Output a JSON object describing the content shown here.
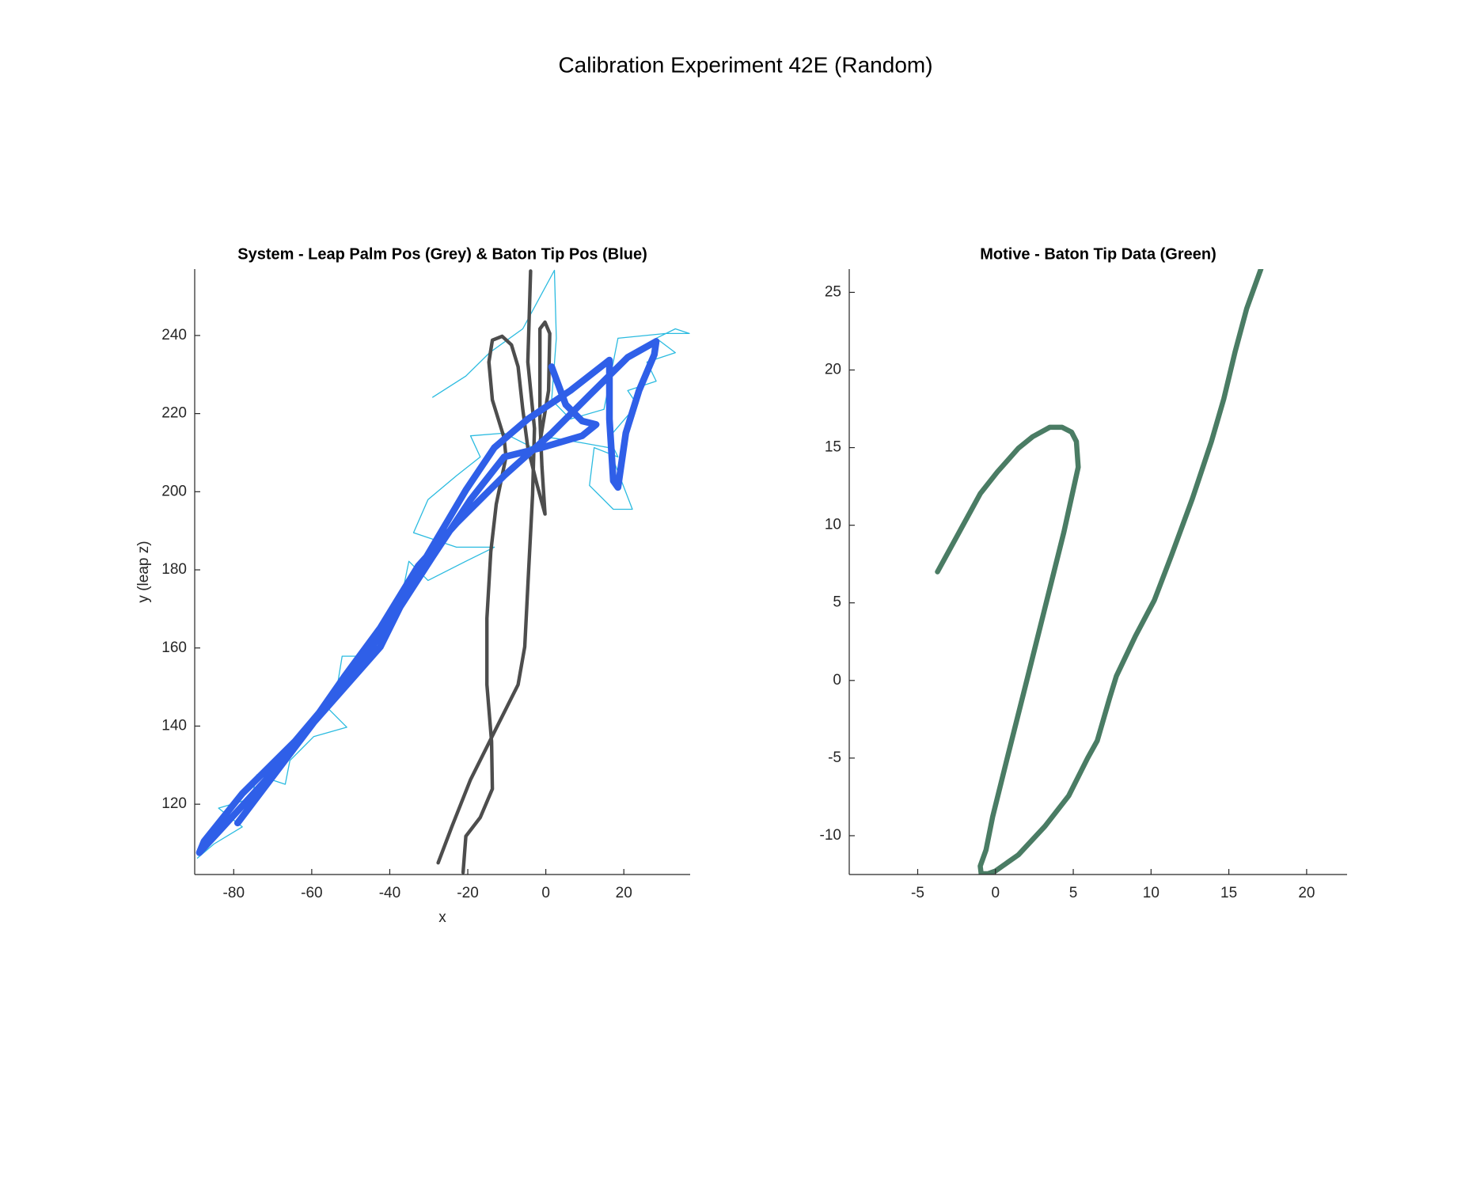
{
  "title": "Calibration Experiment 42E (Random)",
  "chart_data": [
    {
      "type": "line",
      "title": "System - Leap Palm Pos (Grey) & Baton Tip Pos (Blue)",
      "xlabel": "x",
      "ylabel": "y (leap z)",
      "xlim": [
        -90,
        37
      ],
      "ylim": [
        102,
        257
      ],
      "xticks": [
        -80,
        -60,
        -40,
        -20,
        0,
        20
      ],
      "yticks": [
        120,
        140,
        160,
        180,
        200,
        220,
        240
      ],
      "series": [
        {
          "color": "#2bbbe0",
          "x": [
            -29.0,
            -20.5,
            -14.4,
            -5.9,
            2.2,
            2.7,
            1.5,
            6.3,
            14.9,
            18.5,
            30.7,
            36.8,
            33.2,
            28.3,
            33.2,
            25.9,
            28.3,
            21.0,
            23.4,
            16.1,
            18.5,
            12.4,
            11.2,
            17.3,
            22.2,
            16.1,
            8.8,
            1.5,
            -3.4,
            -10.7,
            -19.3,
            -16.8,
            -22.9,
            -30.2,
            -33.9,
            -22.9,
            -13.2,
            -20.5,
            -30.2,
            -35.1,
            -37.6,
            -42.4,
            -44.9,
            -52.2,
            -53.4,
            -57.1,
            -51.0,
            -59.5,
            -65.6,
            -66.8,
            -74.1,
            -75.4,
            -83.9,
            -77.8,
            -85.1,
            -89.3
          ],
          "y": [
            224.2,
            229.6,
            235.6,
            241.7,
            256.7,
            239.3,
            223.5,
            218.6,
            221.1,
            239.3,
            240.5,
            240.5,
            241.7,
            239.3,
            235.6,
            233.2,
            228.3,
            225.9,
            222.3,
            213.8,
            208.9,
            211.3,
            201.6,
            195.5,
            195.5,
            211.3,
            212.6,
            213.8,
            211.3,
            215.0,
            214.3,
            208.9,
            204.1,
            198.0,
            189.5,
            185.8,
            185.8,
            182.2,
            177.3,
            182.2,
            170.0,
            165.2,
            157.9,
            157.9,
            150.6,
            145.8,
            139.7,
            137.3,
            131.2,
            125.1,
            127.5,
            121.5,
            119.0,
            114.2,
            109.8,
            106.2
          ]
        },
        {
          "color": "#4d4d4d",
          "x": [
            -27.6,
            -24.1,
            -19.3,
            -13.2,
            -7.1,
            -5.4,
            -4.4,
            -3.4,
            -2.9,
            -4.6,
            -3.9
          ],
          "y": [
            105.0,
            114.2,
            126.3,
            138.5,
            150.6,
            160.3,
            179.8,
            199.2,
            216.2,
            233.2,
            256.5
          ]
        },
        {
          "color": "#4d4d4d",
          "x": [
            -21.2,
            -20.5,
            -16.8,
            -13.7,
            -13.9,
            -15.1,
            -15.1,
            -14.1,
            -12.7,
            -10.2,
            -10.7,
            -13.7,
            -14.6,
            -13.7,
            -11.2,
            -8.8,
            -7.1,
            -5.9,
            -4.6,
            -2.2,
            -0.2,
            -1.0,
            -1.5,
            -1.5,
            -0.2,
            1.0,
            0.7,
            -1.5,
            -3.4
          ],
          "y": [
            102.5,
            111.8,
            116.6,
            123.9,
            136.0,
            150.6,
            167.6,
            184.6,
            196.8,
            208.9,
            213.8,
            223.5,
            233.2,
            238.8,
            239.8,
            237.6,
            232.0,
            221.1,
            211.3,
            201.6,
            194.3,
            206.5,
            218.6,
            241.7,
            243.4,
            240.5,
            225.9,
            212.6,
            211.3
          ]
        },
        {
          "color": "#2f5fe8",
          "x": [
            1.5,
            5.1,
            9.3,
            12.9,
            9.3,
            -1.0,
            -10.7,
            -19.3,
            -29.0,
            -40.0,
            -51.0,
            -64.4,
            -77.8,
            -87.6,
            -88.8,
            -82.7,
            -71.7,
            -60.7,
            -51.7,
            -42.4,
            -32.7,
            -22.9,
            -10.7,
            1.5,
            11.2,
            21.0,
            28.3,
            27.8,
            23.9,
            20.5,
            18.5,
            17.3,
            16.3,
            16.3,
            6.3,
            -4.6,
            -13.2,
            -20.5,
            -32.7,
            -42.4,
            -59.5,
            -79.0
          ],
          "y": [
            232.0,
            222.3,
            218.1,
            217.2,
            214.3,
            211.3,
            208.9,
            198.0,
            183.4,
            166.4,
            151.8,
            136.0,
            122.7,
            110.5,
            107.6,
            114.2,
            126.3,
            139.7,
            152.6,
            165.2,
            181.0,
            191.9,
            204.1,
            215.0,
            224.7,
            234.4,
            238.5,
            235.1,
            225.9,
            215.0,
            201.1,
            202.8,
            218.6,
            233.7,
            225.9,
            218.6,
            211.3,
            200.4,
            179.8,
            160.3,
            140.9,
            115.2
          ]
        }
      ]
    },
    {
      "type": "line",
      "title": "Motive - Baton Tip Data (Green)",
      "xlim": [
        -9.4,
        22.6
      ],
      "ylim": [
        -12.5,
        26.5
      ],
      "xticks": [
        -5,
        0,
        5,
        10,
        15,
        20
      ],
      "yticks": [
        -10,
        -5,
        0,
        5,
        10,
        15,
        20,
        25
      ],
      "series": [
        {
          "color": "#4a7c64",
          "x": [
            -3.73,
            -2.32,
            -0.98,
            0.12,
            1.47,
            2.39,
            3.49,
            4.28,
            4.89,
            5.2,
            5.32,
            4.4,
            3.18,
            1.96,
            0.73,
            -0.18,
            -0.61,
            -0.98,
            -0.92,
            -0.49,
            0,
            1.47,
            3.18,
            4.71,
            5.93,
            6.54,
            7.34,
            7.77,
            8.99,
            10.21,
            11.31,
            12.66,
            13.88,
            14.68,
            15.41,
            16.15,
            17.06
          ],
          "y": [
            7.0,
            9.58,
            12.03,
            13.43,
            14.96,
            15.7,
            16.31,
            16.31,
            16.0,
            15.39,
            13.74,
            9.58,
            4.68,
            -0.21,
            -5.11,
            -8.78,
            -10.92,
            -11.96,
            -12.45,
            -12.45,
            -12.27,
            -11.23,
            -9.39,
            -7.43,
            -4.99,
            -3.89,
            -1.13,
            0.28,
            2.85,
            5.17,
            8.05,
            11.72,
            15.39,
            18.15,
            21.21,
            23.96,
            26.5
          ]
        }
      ]
    }
  ]
}
